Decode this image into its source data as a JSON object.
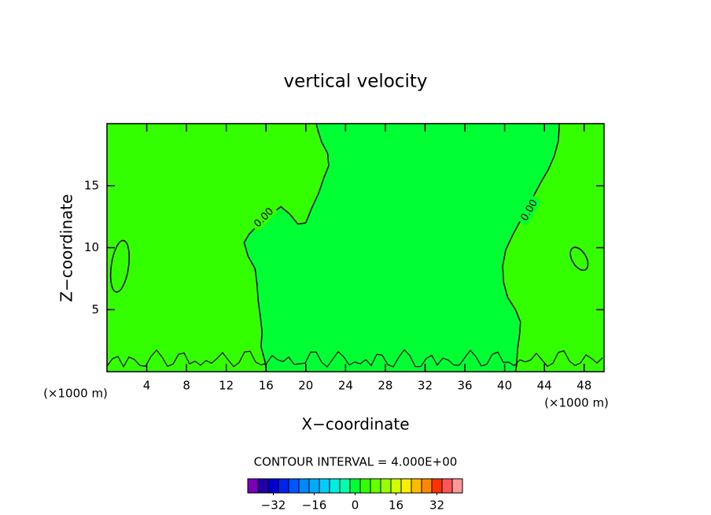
{
  "chart_data": {
    "type": "contour",
    "title": "vertical velocity",
    "xlabel": "X−coordinate",
    "ylabel": "Z−coordinate",
    "x_unit": "(×1000 m)",
    "xlim": [
      0,
      50
    ],
    "ylim": [
      0,
      20
    ],
    "xticks": [
      4,
      8,
      12,
      16,
      20,
      24,
      28,
      32,
      36,
      40,
      44,
      48
    ],
    "yticks": [
      5,
      10,
      15
    ],
    "contour_labels": [
      "0.00",
      "0.00"
    ],
    "contour_interval": "CONTOUR INTERVAL = 4.000E+00",
    "levels": [
      -40,
      -36,
      -32,
      -28,
      -24,
      -20,
      -16,
      -12,
      -8,
      -4,
      0,
      4,
      8,
      12,
      16,
      20,
      24,
      28,
      32,
      36,
      40
    ],
    "colors": [
      "#7a00b8",
      "#2200a8",
      "#0000cc",
      "#0022ee",
      "#0055ff",
      "#0088ff",
      "#00aaff",
      "#00ccff",
      "#00eedd",
      "#00ffaa",
      "#00ff33",
      "#33ff00",
      "#66ff00",
      "#99ff00",
      "#ccff00",
      "#ffee00",
      "#ffbb00",
      "#ff8800",
      "#ff3300",
      "#ff5555",
      "#ff9999"
    ],
    "cbar_ticks": [
      {
        "value": -32,
        "label": "−32"
      },
      {
        "value": -16,
        "label": "−16"
      },
      0,
      16,
      32
    ]
  }
}
